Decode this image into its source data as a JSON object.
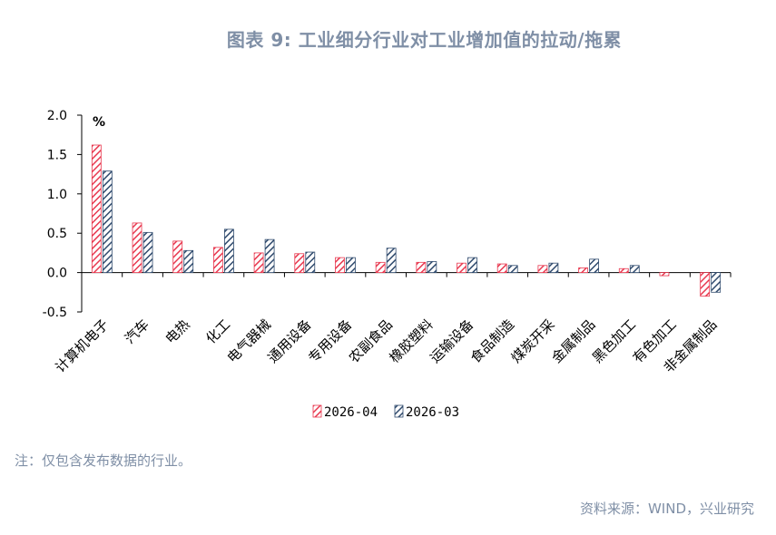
{
  "title": "图表 9:   工业细分行业对工业增加值的拉动/拖累",
  "note": "注：仅包含发布数据的行业。",
  "source": "资料来源：WIND，兴业研究",
  "colors": {
    "series1": "#e8384f",
    "series2": "#2f4a6d"
  },
  "chart_data": {
    "type": "bar",
    "unit_label": "%",
    "ylim": [
      -0.5,
      2.0
    ],
    "yticks": [
      "2.0",
      "1.5",
      "1.0",
      "0.5",
      "0.0",
      "-0.5"
    ],
    "categories": [
      "计算机电子",
      "汽车",
      "电热",
      "化工",
      "电气器械",
      "通用设备",
      "专用设备",
      "农副食品",
      "橡胶塑料",
      "运输设备",
      "食品制造",
      "煤炭开采",
      "金属制品",
      "黑色加工",
      "有色加工",
      "非金属制品"
    ],
    "series": [
      {
        "name": "2026-04",
        "values": [
          1.62,
          0.63,
          0.4,
          0.32,
          0.25,
          0.24,
          0.19,
          0.13,
          0.13,
          0.12,
          0.11,
          0.09,
          0.06,
          0.05,
          -0.04,
          -0.3
        ]
      },
      {
        "name": "2026-03",
        "values": [
          1.29,
          0.51,
          0.28,
          0.55,
          0.42,
          0.26,
          0.19,
          0.31,
          0.14,
          0.19,
          0.09,
          0.12,
          0.17,
          0.09,
          0.0,
          -0.25
        ]
      }
    ],
    "legend": "bottom"
  }
}
